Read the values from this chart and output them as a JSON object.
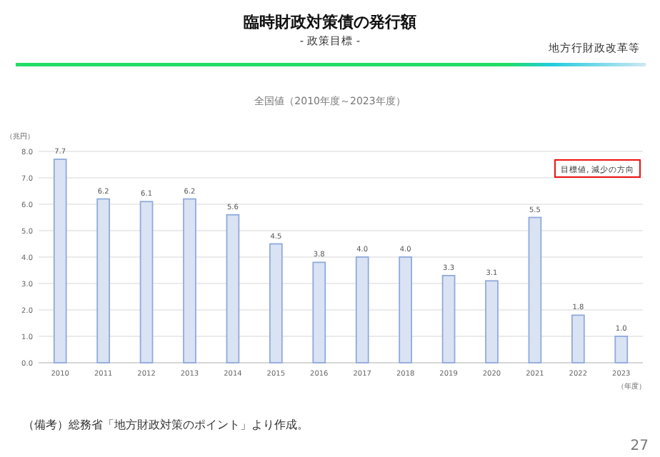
{
  "chart_data": {
    "type": "bar",
    "title": "臨時財政対策債の発行額",
    "subtitle": "- 政策目標 -",
    "ylabel": "（兆円）",
    "xlabel": "（年度）",
    "annotations": [
      "地方行財政改革等",
      "全国値（2010年度～2023年度）",
      "目標値, 減少の方向",
      "（備考）総務省「地方財政対策のポイント」より作成。",
      "27"
    ],
    "categories": [
      "2010",
      "2011",
      "2012",
      "2013",
      "2014",
      "2015",
      "2016",
      "2017",
      "2018",
      "2019",
      "2020",
      "2021",
      "2022",
      "2023"
    ],
    "values": [
      7.7,
      6.2,
      6.1,
      6.2,
      5.6,
      4.5,
      3.8,
      4.0,
      4.0,
      3.3,
      3.1,
      5.5,
      1.8,
      1.0
    ],
    "color": "#dae3f3",
    "ylim": [
      0,
      8
    ],
    "yticks": [
      {
        "value": 0,
        "label": "0.0"
      },
      {
        "value": 1,
        "label": "1.0"
      },
      {
        "value": 2,
        "label": "2.0"
      },
      {
        "value": 3,
        "label": "3.0"
      },
      {
        "value": 4,
        "label": "4.0"
      },
      {
        "value": 5,
        "label": "5.0"
      },
      {
        "value": 6,
        "label": "6.0"
      },
      {
        "value": 7,
        "label": "7.0"
      },
      {
        "value": 8,
        "label": "8.0"
      }
    ],
    "value_labels": [
      "7.7",
      "6.2",
      "6.1",
      "6.2",
      "5.6",
      "4.5",
      "3.8",
      "4.0",
      "4.0",
      "3.3",
      "3.1",
      "5.5",
      "1.8",
      "1.0"
    ],
    "grid": "y"
  }
}
